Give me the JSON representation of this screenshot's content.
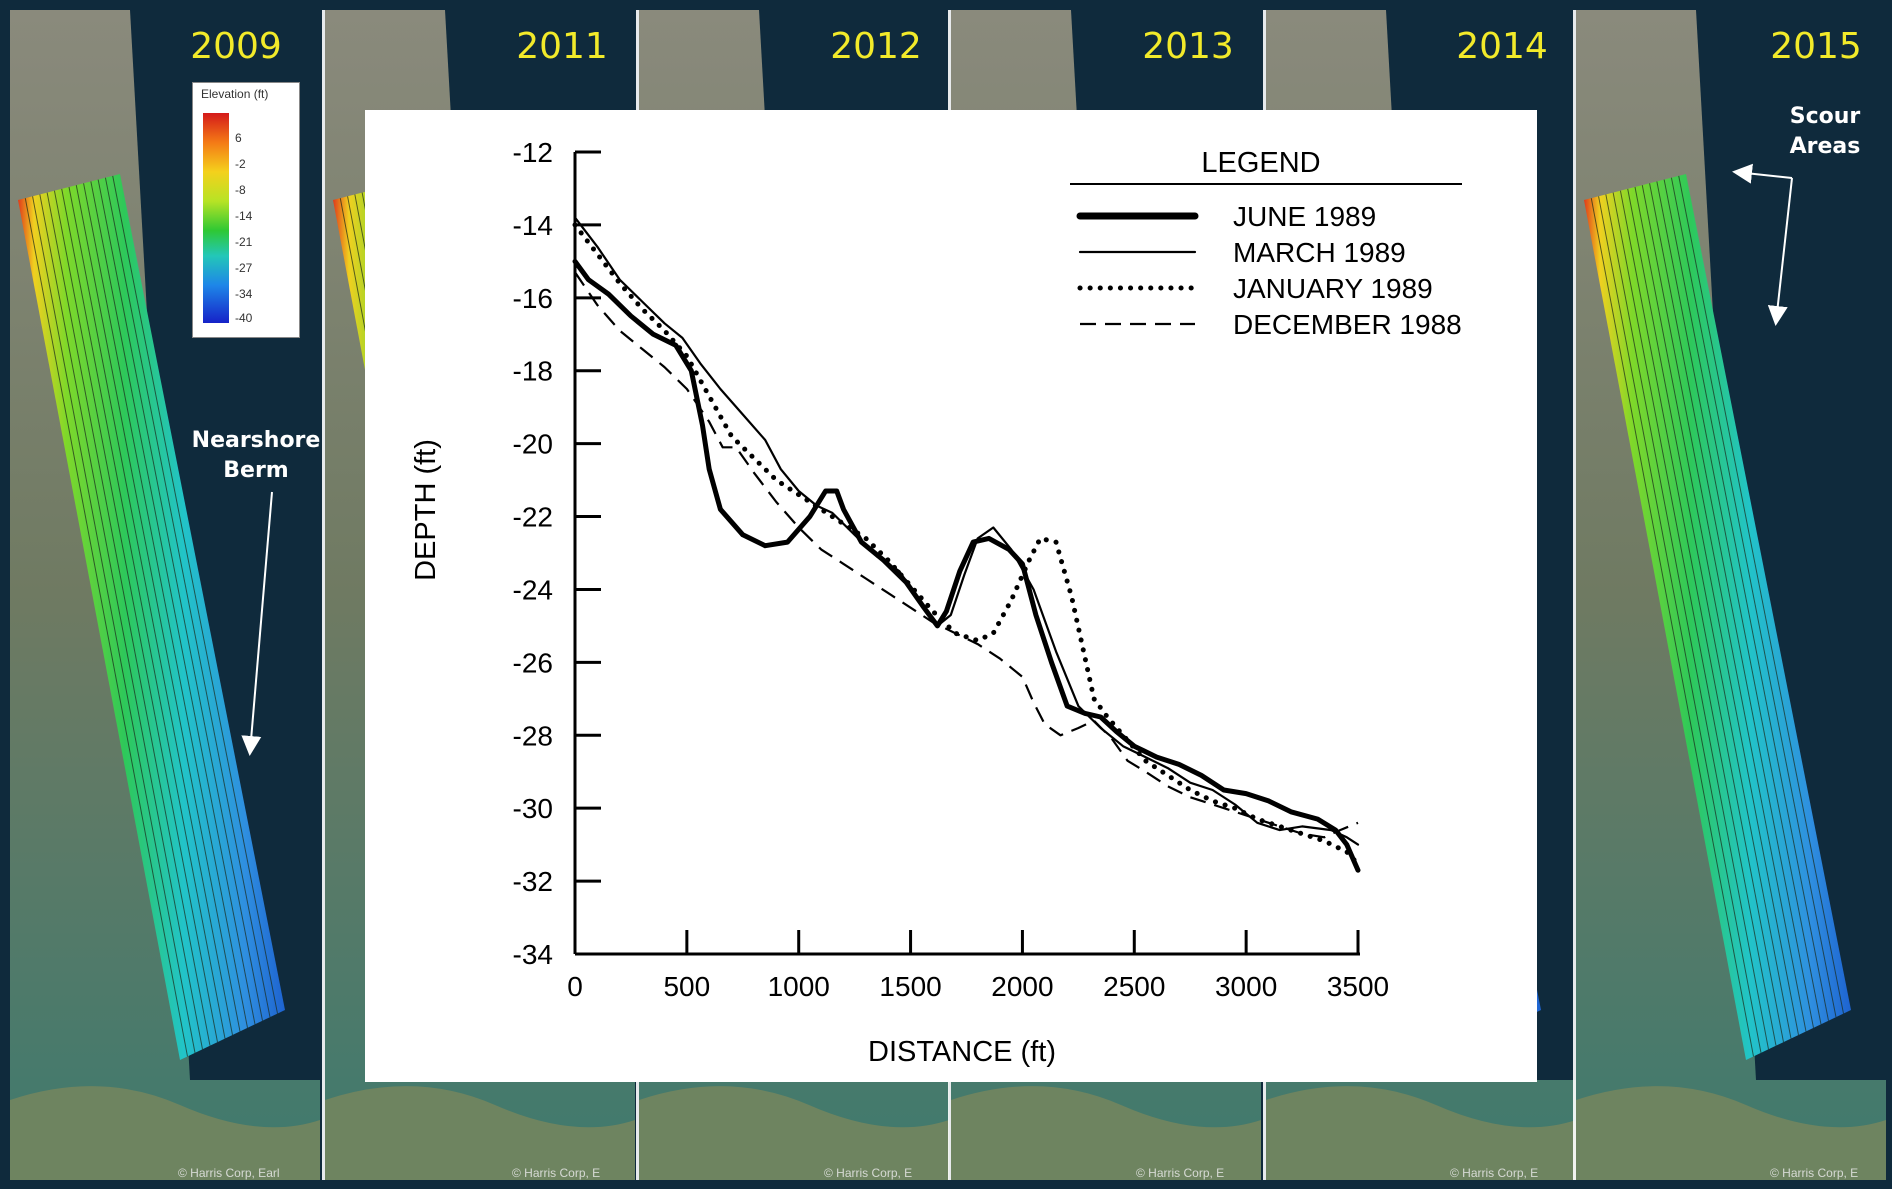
{
  "years": [
    "2009",
    "2011",
    "2012",
    "2013",
    "2014",
    "2015"
  ],
  "annotations": {
    "nearshore_berm": "Nearshore\nBerm",
    "scour_areas": "Scour\nAreas"
  },
  "colorbar": {
    "title": "Elevation (ft)",
    "ticks": [
      "6",
      "-2",
      "-8",
      "-14",
      "-21",
      "-27",
      "-34",
      "-40"
    ]
  },
  "map_credits": [
    "© Harris Corp, Earl",
    "© Harris Corp, E",
    "© Harris Corp, E",
    "© Harris Corp, E",
    "© Harris Corp, E",
    "© Harris Corp, E"
  ],
  "colors": {
    "background_water": "#0f2a3c",
    "year_label": "#f2ea2a",
    "chart_ink": "#000000"
  },
  "chart_data": {
    "type": "line",
    "title": "",
    "xlabel": "DISTANCE (ft)",
    "ylabel": "DEPTH (ft)",
    "xlim": [
      0,
      3500
    ],
    "ylim": [
      -34,
      -12
    ],
    "x_ticks": [
      0,
      500,
      1000,
      1500,
      2000,
      2500,
      3000,
      3500
    ],
    "y_ticks": [
      -12,
      -14,
      -16,
      -18,
      -20,
      -22,
      -24,
      -26,
      -28,
      -30,
      -32,
      -34
    ],
    "grid": false,
    "legend_title": "LEGEND",
    "legend_position": "top-right",
    "series": [
      {
        "name": "JUNE 1989",
        "style": "thick-solid",
        "points": [
          [
            0,
            -15.0
          ],
          [
            60,
            -15.5
          ],
          [
            150,
            -15.9
          ],
          [
            250,
            -16.5
          ],
          [
            350,
            -17.0
          ],
          [
            450,
            -17.3
          ],
          [
            520,
            -18.0
          ],
          [
            570,
            -19.5
          ],
          [
            600,
            -20.7
          ],
          [
            650,
            -21.8
          ],
          [
            750,
            -22.5
          ],
          [
            850,
            -22.8
          ],
          [
            950,
            -22.7
          ],
          [
            1050,
            -22.0
          ],
          [
            1120,
            -21.3
          ],
          [
            1170,
            -21.3
          ],
          [
            1200,
            -21.8
          ],
          [
            1280,
            -22.7
          ],
          [
            1380,
            -23.2
          ],
          [
            1480,
            -23.8
          ],
          [
            1560,
            -24.5
          ],
          [
            1620,
            -25.0
          ],
          [
            1660,
            -24.6
          ],
          [
            1720,
            -23.5
          ],
          [
            1780,
            -22.7
          ],
          [
            1850,
            -22.6
          ],
          [
            1940,
            -22.9
          ],
          [
            2000,
            -23.3
          ],
          [
            2060,
            -24.7
          ],
          [
            2130,
            -26.0
          ],
          [
            2200,
            -27.2
          ],
          [
            2280,
            -27.4
          ],
          [
            2350,
            -27.5
          ],
          [
            2420,
            -27.9
          ],
          [
            2500,
            -28.3
          ],
          [
            2600,
            -28.6
          ],
          [
            2700,
            -28.8
          ],
          [
            2800,
            -29.1
          ],
          [
            2900,
            -29.5
          ],
          [
            3000,
            -29.6
          ],
          [
            3100,
            -29.8
          ],
          [
            3200,
            -30.1
          ],
          [
            3320,
            -30.3
          ],
          [
            3400,
            -30.6
          ],
          [
            3450,
            -31.0
          ],
          [
            3500,
            -31.7
          ]
        ]
      },
      {
        "name": "MARCH 1989",
        "style": "thin-solid",
        "points": [
          [
            0,
            -13.8
          ],
          [
            100,
            -14.6
          ],
          [
            200,
            -15.5
          ],
          [
            300,
            -16.1
          ],
          [
            400,
            -16.7
          ],
          [
            480,
            -17.1
          ],
          [
            560,
            -17.8
          ],
          [
            650,
            -18.5
          ],
          [
            750,
            -19.2
          ],
          [
            850,
            -19.9
          ],
          [
            920,
            -20.7
          ],
          [
            1000,
            -21.3
          ],
          [
            1080,
            -21.7
          ],
          [
            1150,
            -21.9
          ],
          [
            1250,
            -22.5
          ],
          [
            1350,
            -23.1
          ],
          [
            1450,
            -23.5
          ],
          [
            1550,
            -24.4
          ],
          [
            1620,
            -25.0
          ],
          [
            1680,
            -24.7
          ],
          [
            1740,
            -23.6
          ],
          [
            1800,
            -22.6
          ],
          [
            1870,
            -22.3
          ],
          [
            1950,
            -22.9
          ],
          [
            2050,
            -24.0
          ],
          [
            2150,
            -25.7
          ],
          [
            2250,
            -27.2
          ],
          [
            2350,
            -27.8
          ],
          [
            2450,
            -28.3
          ],
          [
            2550,
            -28.6
          ],
          [
            2650,
            -28.9
          ],
          [
            2750,
            -29.3
          ],
          [
            2850,
            -29.5
          ],
          [
            2950,
            -29.9
          ],
          [
            3050,
            -30.4
          ],
          [
            3150,
            -30.6
          ],
          [
            3250,
            -30.5
          ],
          [
            3380,
            -30.6
          ],
          [
            3450,
            -30.8
          ],
          [
            3500,
            -31.0
          ]
        ]
      },
      {
        "name": "JANUARY 1989",
        "style": "dotted",
        "points": [
          [
            0,
            -14.0
          ],
          [
            100,
            -14.8
          ],
          [
            200,
            -15.6
          ],
          [
            300,
            -16.3
          ],
          [
            400,
            -16.9
          ],
          [
            500,
            -17.6
          ],
          [
            600,
            -18.7
          ],
          [
            700,
            -19.8
          ],
          [
            800,
            -20.4
          ],
          [
            900,
            -21.0
          ],
          [
            1000,
            -21.4
          ],
          [
            1100,
            -21.8
          ],
          [
            1200,
            -22.2
          ],
          [
            1300,
            -22.6
          ],
          [
            1400,
            -23.2
          ],
          [
            1500,
            -23.9
          ],
          [
            1600,
            -24.6
          ],
          [
            1700,
            -25.2
          ],
          [
            1800,
            -25.4
          ],
          [
            1870,
            -25.2
          ],
          [
            1950,
            -24.3
          ],
          [
            2030,
            -23.2
          ],
          [
            2080,
            -22.6
          ],
          [
            2150,
            -22.7
          ],
          [
            2220,
            -24.2
          ],
          [
            2270,
            -25.6
          ],
          [
            2320,
            -27.0
          ],
          [
            2380,
            -27.5
          ],
          [
            2450,
            -28.0
          ],
          [
            2550,
            -28.7
          ],
          [
            2650,
            -29.1
          ],
          [
            2750,
            -29.5
          ],
          [
            2850,
            -29.8
          ],
          [
            2950,
            -30.0
          ],
          [
            3050,
            -30.3
          ],
          [
            3150,
            -30.5
          ],
          [
            3250,
            -30.7
          ],
          [
            3350,
            -30.9
          ],
          [
            3450,
            -31.2
          ],
          [
            3510,
            -31.6
          ]
        ]
      },
      {
        "name": "DECEMBER 1988",
        "style": "dashed",
        "points": [
          [
            0,
            -15.3
          ],
          [
            100,
            -16.2
          ],
          [
            200,
            -16.9
          ],
          [
            300,
            -17.4
          ],
          [
            400,
            -17.9
          ],
          [
            500,
            -18.5
          ],
          [
            600,
            -19.4
          ],
          [
            660,
            -20.1
          ],
          [
            720,
            -20.1
          ],
          [
            800,
            -20.8
          ],
          [
            900,
            -21.6
          ],
          [
            1000,
            -22.3
          ],
          [
            1100,
            -22.9
          ],
          [
            1200,
            -23.3
          ],
          [
            1300,
            -23.7
          ],
          [
            1400,
            -24.1
          ],
          [
            1500,
            -24.5
          ],
          [
            1600,
            -24.9
          ],
          [
            1700,
            -25.2
          ],
          [
            1800,
            -25.5
          ],
          [
            1900,
            -25.9
          ],
          [
            2000,
            -26.4
          ],
          [
            2050,
            -27.1
          ],
          [
            2100,
            -27.7
          ],
          [
            2170,
            -28.0
          ],
          [
            2250,
            -27.8
          ],
          [
            2320,
            -27.6
          ],
          [
            2400,
            -28.1
          ],
          [
            2470,
            -28.7
          ],
          [
            2550,
            -29.0
          ],
          [
            2650,
            -29.4
          ],
          [
            2750,
            -29.7
          ],
          [
            2850,
            -29.9
          ],
          [
            2950,
            -30.1
          ],
          [
            3050,
            -30.3
          ],
          [
            3150,
            -30.5
          ],
          [
            3250,
            -30.7
          ],
          [
            3350,
            -30.8
          ],
          [
            3420,
            -30.6
          ],
          [
            3500,
            -30.4
          ]
        ]
      }
    ]
  }
}
